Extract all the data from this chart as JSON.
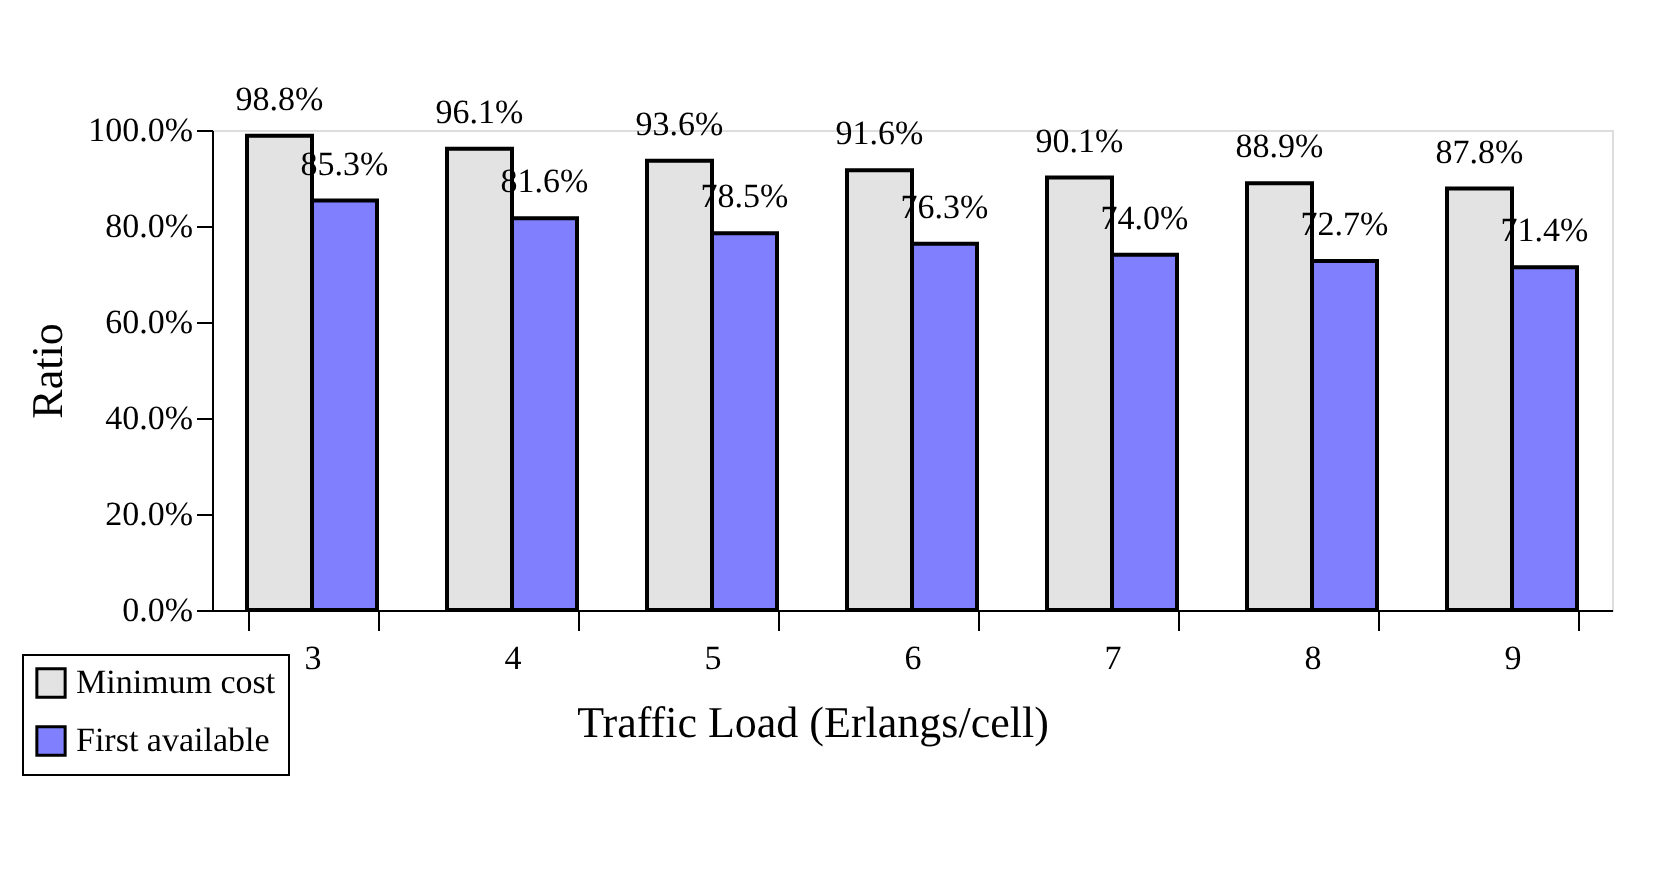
{
  "chart_data": {
    "type": "bar",
    "xlabel": "Traffic Load (Erlangs/cell)",
    "ylabel": "Ratio",
    "categories": [
      "3",
      "4",
      "5",
      "6",
      "7",
      "8",
      "9"
    ],
    "series": [
      {
        "name": "Minimum cost",
        "color": "#e3e3e3",
        "values": [
          98.8,
          96.1,
          93.6,
          91.6,
          90.1,
          88.9,
          87.8
        ],
        "value_labels": [
          "98.8%",
          "96.1%",
          "93.6%",
          "91.6%",
          "90.1%",
          "88.9%",
          "87.8%"
        ]
      },
      {
        "name": "First available",
        "color": "#8080ff",
        "values": [
          85.3,
          81.6,
          78.5,
          76.3,
          74.0,
          72.7,
          71.4
        ],
        "value_labels": [
          "85.3%",
          "81.6%",
          "78.5%",
          "76.3%",
          "74.0%",
          "72.7%",
          "71.4%"
        ]
      }
    ],
    "ylim": [
      0,
      100
    ],
    "yticks": [
      {
        "value": 0,
        "label": "0.0%"
      },
      {
        "value": 20,
        "label": "20.0%"
      },
      {
        "value": 40,
        "label": "40.0%"
      },
      {
        "value": 60,
        "label": "60.0%"
      },
      {
        "value": 80,
        "label": "80.0%"
      },
      {
        "value": 100,
        "label": "100.0%"
      }
    ],
    "grid": false,
    "legend": "bottom left"
  }
}
